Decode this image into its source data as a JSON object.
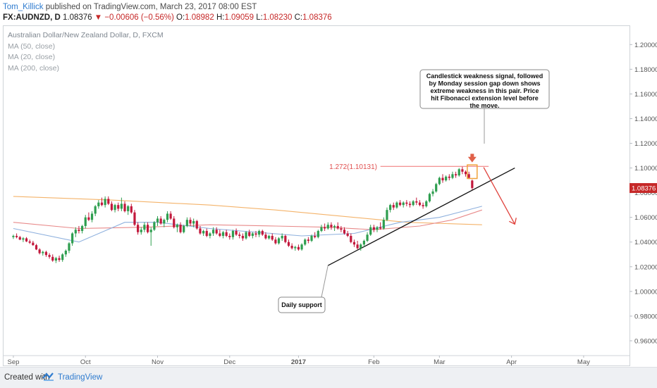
{
  "header": {
    "author": "Tom_Killick",
    "published_text": "published on TradingView.com, March 23, 2017 08:00 EST"
  },
  "symbol_bar": {
    "symbol": "FX:AUDNZD, D",
    "last": "1.08376",
    "change": "▼ −0.00606 (−0.56%)",
    "open_label": "O:",
    "open": "1.08982",
    "high_label": "H:",
    "high": "1.09059",
    "low_label": "L:",
    "low": "1.08230",
    "close_label": "C:",
    "close": "1.08376"
  },
  "legend": {
    "title": "Australian Dollar/New Zealand Dollar, D, FXCM",
    "items": [
      "MA (50, close)",
      "MA (20, close)",
      "MA (200, close)"
    ]
  },
  "footer": {
    "created": "Created with",
    "brand": "TradingView"
  },
  "chart_data": {
    "type": "candlestick",
    "y_axis": {
      "ticks": [
        0.96,
        0.98,
        1.0,
        1.02,
        1.04,
        1.06,
        1.08,
        1.1,
        1.12,
        1.14,
        1.16,
        1.18,
        1.2
      ],
      "tick_labels": [
        "0.96000",
        "0.98000",
        "1.00000",
        "1.02000",
        "1.04000",
        "1.06000",
        "1.08000",
        "1.10000",
        "1.12000",
        "1.14000",
        "1.16000",
        "1.18000",
        "1.20000"
      ],
      "range": [
        0.948,
        1.215
      ]
    },
    "x_axis": {
      "labels": [
        {
          "text": "Sep",
          "index": 0
        },
        {
          "text": "Oct",
          "index": 22
        },
        {
          "text": "Nov",
          "index": 44
        },
        {
          "text": "Dec",
          "index": 66
        },
        {
          "text": "2017",
          "index": 87
        },
        {
          "text": "Feb",
          "index": 110
        },
        {
          "text": "Mar",
          "index": 130
        },
        {
          "text": "Apr",
          "index": 152
        },
        {
          "text": "May",
          "index": 174
        }
      ],
      "range": [
        -3,
        188
      ]
    },
    "last_price_label": "1.08376",
    "colors": {
      "up": "#2e9e4f",
      "down": "#c2183c",
      "ma50": "#8fb1de",
      "ma20": "#e88a8a",
      "ma200": "#f4b36a"
    },
    "candles": [
      [
        1.044,
        1.046,
        1.0425,
        1.045
      ],
      [
        1.045,
        1.047,
        1.043,
        1.044
      ],
      [
        1.044,
        1.045,
        1.0415,
        1.042
      ],
      [
        1.042,
        1.044,
        1.04,
        1.043
      ],
      [
        1.043,
        1.044,
        1.04,
        1.0405
      ],
      [
        1.0405,
        1.042,
        1.0385,
        1.0395
      ],
      [
        1.0395,
        1.041,
        1.037,
        1.0375
      ],
      [
        1.0375,
        1.0385,
        1.0335,
        1.034
      ],
      [
        1.034,
        1.035,
        1.03,
        1.031
      ],
      [
        1.031,
        1.033,
        1.029,
        1.032
      ],
      [
        1.032,
        1.033,
        1.028,
        1.0295
      ],
      [
        1.0295,
        1.031,
        1.0265,
        1.028
      ],
      [
        1.028,
        1.03,
        1.024,
        1.025
      ],
      [
        1.025,
        1.028,
        1.023,
        1.027
      ],
      [
        1.027,
        1.029,
        1.024,
        1.0255
      ],
      [
        1.0255,
        1.031,
        1.024,
        1.03
      ],
      [
        1.03,
        1.034,
        1.028,
        1.033
      ],
      [
        1.033,
        1.04,
        1.031,
        1.039
      ],
      [
        1.039,
        1.048,
        1.037,
        1.047
      ],
      [
        1.047,
        1.052,
        1.044,
        1.05
      ],
      [
        1.05,
        1.053,
        1.047,
        1.049
      ],
      [
        1.049,
        1.054,
        1.047,
        1.053
      ],
      [
        1.053,
        1.062,
        1.051,
        1.06
      ],
      [
        1.06,
        1.064,
        1.057,
        1.058
      ],
      [
        1.058,
        1.065,
        1.056,
        1.063
      ],
      [
        1.063,
        1.07,
        1.061,
        1.069
      ],
      [
        1.069,
        1.074,
        1.067,
        1.072
      ],
      [
        1.072,
        1.076,
        1.069,
        1.07
      ],
      [
        1.07,
        1.077,
        1.068,
        1.075
      ],
      [
        1.075,
        1.077,
        1.07,
        1.071
      ],
      [
        1.071,
        1.073,
        1.065,
        1.066
      ],
      [
        1.066,
        1.071,
        1.064,
        1.07
      ],
      [
        1.07,
        1.072,
        1.065,
        1.067
      ],
      [
        1.067,
        1.076,
        1.065,
        1.071
      ],
      [
        1.071,
        1.073,
        1.064,
        1.065
      ],
      [
        1.065,
        1.07,
        1.062,
        1.069
      ],
      [
        1.069,
        1.071,
        1.063,
        1.064
      ],
      [
        1.064,
        1.066,
        1.053,
        1.054
      ],
      [
        1.054,
        1.056,
        1.046,
        1.048
      ],
      [
        1.048,
        1.052,
        1.046,
        1.05
      ],
      [
        1.05,
        1.056,
        1.048,
        1.054
      ],
      [
        1.054,
        1.056,
        1.047,
        1.048
      ],
      [
        1.048,
        1.052,
        1.037,
        1.05
      ],
      [
        1.05,
        1.057,
        1.049,
        1.056
      ],
      [
        1.056,
        1.061,
        1.053,
        1.059
      ],
      [
        1.059,
        1.061,
        1.054,
        1.055
      ],
      [
        1.055,
        1.059,
        1.052,
        1.058
      ],
      [
        1.058,
        1.065,
        1.056,
        1.063
      ],
      [
        1.063,
        1.065,
        1.058,
        1.059
      ],
      [
        1.059,
        1.061,
        1.051,
        1.052
      ],
      [
        1.052,
        1.055,
        1.048,
        1.054
      ],
      [
        1.054,
        1.056,
        1.047,
        1.048
      ],
      [
        1.048,
        1.054,
        1.047,
        1.053
      ],
      [
        1.053,
        1.06,
        1.052,
        1.058
      ],
      [
        1.058,
        1.06,
        1.053,
        1.055
      ],
      [
        1.055,
        1.059,
        1.052,
        1.057
      ],
      [
        1.057,
        1.058,
        1.05,
        1.051
      ],
      [
        1.051,
        1.053,
        1.046,
        1.047
      ],
      [
        1.047,
        1.05,
        1.045,
        1.049
      ],
      [
        1.049,
        1.051,
        1.044,
        1.045
      ],
      [
        1.045,
        1.048,
        1.043,
        1.047
      ],
      [
        1.047,
        1.052,
        1.045,
        1.05
      ],
      [
        1.05,
        1.052,
        1.046,
        1.047
      ],
      [
        1.047,
        1.05,
        1.044,
        1.045
      ],
      [
        1.045,
        1.049,
        1.043,
        1.048
      ],
      [
        1.048,
        1.05,
        1.044,
        1.045
      ],
      [
        1.045,
        1.047,
        1.042,
        1.044
      ],
      [
        1.044,
        1.05,
        1.042,
        1.049
      ],
      [
        1.049,
        1.051,
        1.045,
        1.046
      ],
      [
        1.046,
        1.048,
        1.043,
        1.045
      ],
      [
        1.045,
        1.047,
        1.041,
        1.043
      ],
      [
        1.043,
        1.049,
        1.042,
        1.048
      ],
      [
        1.048,
        1.05,
        1.044,
        1.045
      ],
      [
        1.045,
        1.048,
        1.043,
        1.047
      ],
      [
        1.047,
        1.049,
        1.044,
        1.046
      ],
      [
        1.046,
        1.05,
        1.044,
        1.049
      ],
      [
        1.049,
        1.05,
        1.045,
        1.046
      ],
      [
        1.046,
        1.048,
        1.042,
        1.043
      ],
      [
        1.043,
        1.046,
        1.042,
        1.045
      ],
      [
        1.045,
        1.047,
        1.041,
        1.042
      ],
      [
        1.042,
        1.044,
        1.038,
        1.039
      ],
      [
        1.039,
        1.044,
        1.038,
        1.043
      ],
      [
        1.043,
        1.047,
        1.041,
        1.045
      ],
      [
        1.045,
        1.046,
        1.039,
        1.04
      ],
      [
        1.04,
        1.042,
        1.036,
        1.037
      ],
      [
        1.037,
        1.039,
        1.034,
        1.035
      ],
      [
        1.035,
        1.037,
        1.033,
        1.036
      ],
      [
        1.036,
        1.038,
        1.033,
        1.034
      ],
      [
        1.034,
        1.039,
        1.033,
        1.038
      ],
      [
        1.038,
        1.043,
        1.037,
        1.042
      ],
      [
        1.042,
        1.044,
        1.039,
        1.041
      ],
      [
        1.041,
        1.046,
        1.04,
        1.045
      ],
      [
        1.045,
        1.048,
        1.043,
        1.044
      ],
      [
        1.044,
        1.05,
        1.043,
        1.049
      ],
      [
        1.049,
        1.054,
        1.048,
        1.052
      ],
      [
        1.052,
        1.055,
        1.049,
        1.051
      ],
      [
        1.051,
        1.056,
        1.05,
        1.054
      ],
      [
        1.054,
        1.056,
        1.05,
        1.052
      ],
      [
        1.052,
        1.054,
        1.049,
        1.053
      ],
      [
        1.053,
        1.056,
        1.05,
        1.051
      ],
      [
        1.051,
        1.053,
        1.048,
        1.05
      ],
      [
        1.05,
        1.052,
        1.046,
        1.047
      ],
      [
        1.047,
        1.049,
        1.044,
        1.045
      ],
      [
        1.045,
        1.047,
        1.039,
        1.04
      ],
      [
        1.04,
        1.042,
        1.036,
        1.038
      ],
      [
        1.038,
        1.041,
        1.034,
        1.035
      ],
      [
        1.035,
        1.039,
        1.033,
        1.038
      ],
      [
        1.038,
        1.042,
        1.036,
        1.041
      ],
      [
        1.041,
        1.048,
        1.04,
        1.046
      ],
      [
        1.046,
        1.054,
        1.045,
        1.052
      ],
      [
        1.052,
        1.054,
        1.048,
        1.05
      ],
      [
        1.05,
        1.053,
        1.048,
        1.052
      ],
      [
        1.052,
        1.056,
        1.05,
        1.051
      ],
      [
        1.051,
        1.06,
        1.05,
        1.058
      ],
      [
        1.058,
        1.068,
        1.057,
        1.066
      ],
      [
        1.066,
        1.071,
        1.064,
        1.07
      ],
      [
        1.07,
        1.072,
        1.066,
        1.068
      ],
      [
        1.068,
        1.073,
        1.067,
        1.072
      ],
      [
        1.072,
        1.074,
        1.069,
        1.07
      ],
      [
        1.07,
        1.073,
        1.068,
        1.072
      ],
      [
        1.072,
        1.074,
        1.069,
        1.071
      ],
      [
        1.071,
        1.073,
        1.068,
        1.07
      ],
      [
        1.07,
        1.074,
        1.069,
        1.073
      ],
      [
        1.073,
        1.076,
        1.07,
        1.072
      ],
      [
        1.072,
        1.074,
        1.069,
        1.07
      ],
      [
        1.07,
        1.072,
        1.067,
        1.069
      ],
      [
        1.069,
        1.074,
        1.068,
        1.073
      ],
      [
        1.073,
        1.08,
        1.072,
        1.079
      ],
      [
        1.079,
        1.083,
        1.077,
        1.081
      ],
      [
        1.081,
        1.088,
        1.08,
        1.087
      ],
      [
        1.087,
        1.093,
        1.086,
        1.092
      ],
      [
        1.092,
        1.095,
        1.088,
        1.09
      ],
      [
        1.09,
        1.094,
        1.089,
        1.093
      ],
      [
        1.093,
        1.095,
        1.09,
        1.092
      ],
      [
        1.092,
        1.097,
        1.091,
        1.095
      ],
      [
        1.095,
        1.097,
        1.092,
        1.094
      ],
      [
        1.094,
        1.1,
        1.093,
        1.099
      ],
      [
        1.099,
        1.101,
        1.095,
        1.097
      ],
      [
        1.097,
        1.098,
        1.093,
        1.095
      ],
      [
        1.095,
        1.097,
        1.091,
        1.092
      ],
      [
        1.0898,
        1.0906,
        1.0823,
        1.0838
      ]
    ],
    "ma50": [
      [
        0,
        1.051
      ],
      [
        20,
        1.04
      ],
      [
        34,
        1.056
      ],
      [
        44,
        1.056
      ],
      [
        60,
        1.051
      ],
      [
        88,
        1.045
      ],
      [
        104,
        1.047
      ],
      [
        118,
        1.056
      ],
      [
        130,
        1.06
      ],
      [
        143,
        1.069
      ]
    ],
    "ma20": [
      [
        0,
        1.056
      ],
      [
        20,
        1.051
      ],
      [
        40,
        1.052
      ],
      [
        60,
        1.054
      ],
      [
        80,
        1.053
      ],
      [
        96,
        1.052
      ],
      [
        110,
        1.05
      ],
      [
        124,
        1.053
      ],
      [
        134,
        1.058
      ],
      [
        143,
        1.066
      ]
    ],
    "ma200": [
      [
        0,
        1.077
      ],
      [
        30,
        1.074
      ],
      [
        60,
        1.07
      ],
      [
        80,
        1.066
      ],
      [
        100,
        1.061
      ],
      [
        120,
        1.056
      ],
      [
        143,
        1.054
      ]
    ],
    "fib_level": {
      "label": "1.272(1.10131)",
      "value": 1.10131
    },
    "trendline": [
      [
        96,
        1.021
      ],
      [
        153,
        1.1
      ]
    ],
    "annotations": [
      {
        "text": "Candlestick weakness signal, followed by Monday session gap down shows extreme weakness in this pair. Price hit Fibonacci extension level before the move."
      },
      {
        "text": "Daily support"
      }
    ]
  }
}
